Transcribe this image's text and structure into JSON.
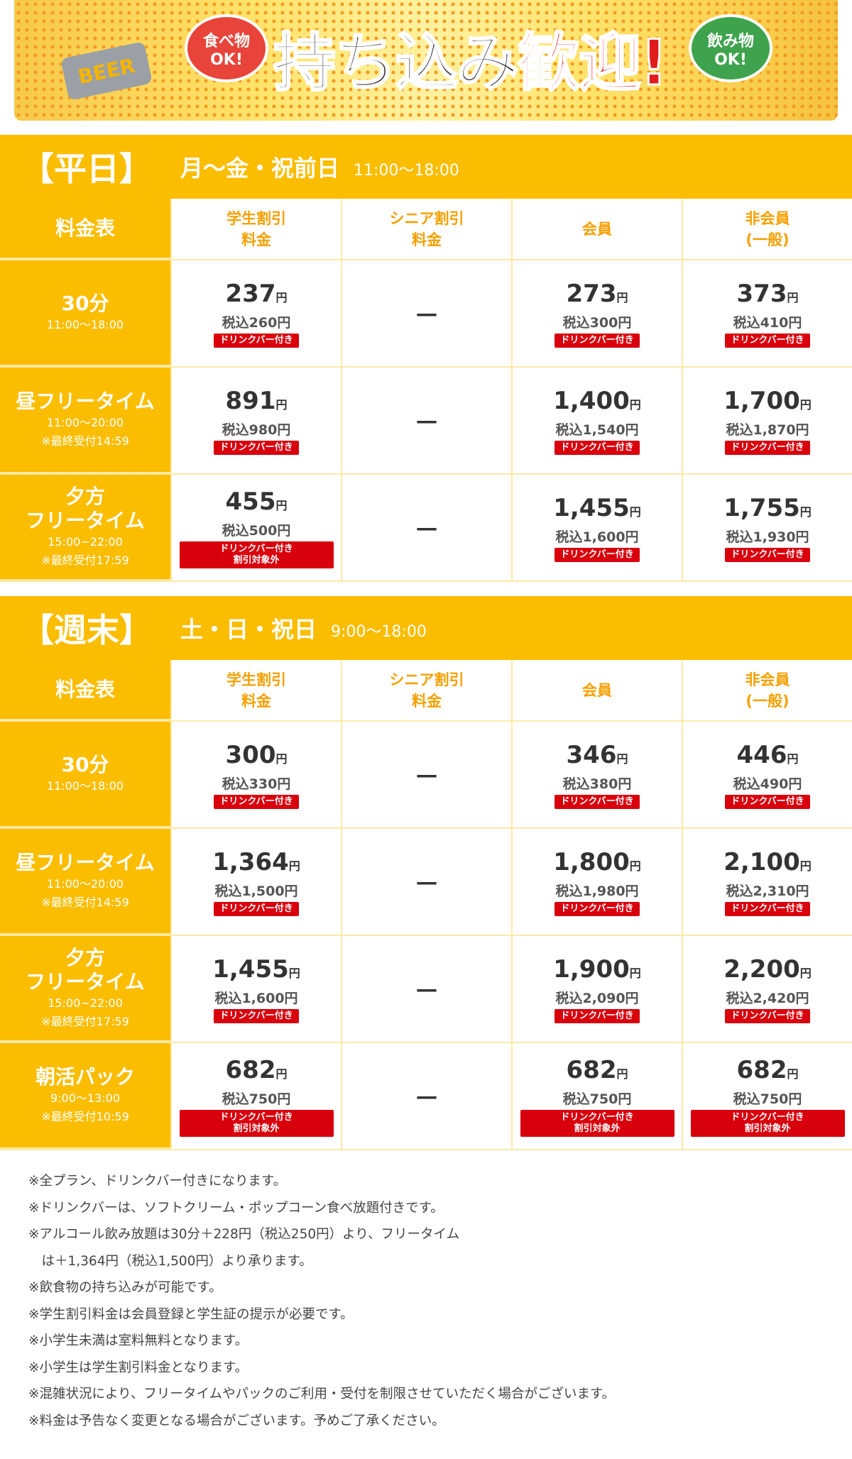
{
  "banner": {
    "beer": "BEER",
    "food": [
      "食べ物",
      "OK!"
    ],
    "title": "持ち込み",
    "title_red": "歓迎!",
    "drink": [
      "飲み物",
      "OK!"
    ]
  },
  "sections": [
    {
      "label": "【平日】",
      "days": "月～金・祝前日",
      "hours": "11:00～18:00",
      "header": [
        [
          "料金表"
        ],
        [
          "学生割引",
          "料金"
        ],
        [
          "シニア割引",
          "料金"
        ],
        [
          "会員"
        ],
        [
          "非会員",
          "(一般)"
        ]
      ],
      "rows": [
        {
          "name": [
            "30分"
          ],
          "times": [
            "11:00～18:00"
          ],
          "cells": [
            {
              "price": "237",
              "unit": "円",
              "tax": "税込260円",
              "badge": [
                "ドリンクバー付き"
              ]
            },
            {
              "dash": "－"
            },
            {
              "price": "273",
              "unit": "円",
              "tax": "税込300円",
              "badge": [
                "ドリンクバー付き"
              ]
            },
            {
              "price": "373",
              "unit": "円",
              "tax": "税込410円",
              "badge": [
                "ドリンクバー付き"
              ]
            }
          ]
        },
        {
          "name": [
            "昼フリータイム"
          ],
          "times": [
            "11:00～20:00",
            "※最終受付14:59"
          ],
          "cells": [
            {
              "price": "891",
              "unit": "円",
              "tax": "税込980円",
              "badge": [
                "ドリンクバー付き"
              ]
            },
            {
              "dash": "－"
            },
            {
              "price": "1,400",
              "unit": "円",
              "tax": "税込1,540円",
              "badge": [
                "ドリンクバー付き"
              ]
            },
            {
              "price": "1,700",
              "unit": "円",
              "tax": "税込1,870円",
              "badge": [
                "ドリンクバー付き"
              ]
            }
          ]
        },
        {
          "name": [
            "夕方",
            "フリータイム"
          ],
          "times": [
            "15:00~22:00",
            "※最終受付17:59"
          ],
          "cells": [
            {
              "price": "455",
              "unit": "円",
              "tax": "税込500円",
              "badge": [
                "ドリンクバー付き",
                "割引対象外"
              ]
            },
            {
              "dash": "－"
            },
            {
              "price": "1,455",
              "unit": "円",
              "tax": "税込1,600円",
              "badge": [
                "ドリンクバー付き"
              ]
            },
            {
              "price": "1,755",
              "unit": "円",
              "tax": "税込1,930円",
              "badge": [
                "ドリンクバー付き"
              ]
            }
          ]
        }
      ]
    },
    {
      "label": "【週末】",
      "days": "土・日・祝日",
      "hours": "9:00～18:00",
      "header": [
        [
          "料金表"
        ],
        [
          "学生割引",
          "料金"
        ],
        [
          "シニア割引",
          "料金"
        ],
        [
          "会員"
        ],
        [
          "非会員",
          "(一般)"
        ]
      ],
      "rows": [
        {
          "name": [
            "30分"
          ],
          "times": [
            "11:00～18:00"
          ],
          "cells": [
            {
              "price": "300",
              "unit": "円",
              "tax": "税込330円",
              "badge": [
                "ドリンクバー付き"
              ]
            },
            {
              "dash": "－"
            },
            {
              "price": "346",
              "unit": "円",
              "tax": "税込380円",
              "badge": [
                "ドリンクバー付き"
              ]
            },
            {
              "price": "446",
              "unit": "円",
              "tax": "税込490円",
              "badge": [
                "ドリンクバー付き"
              ]
            }
          ]
        },
        {
          "name": [
            "昼フリータイム"
          ],
          "times": [
            "11:00～20:00",
            "※最終受付14:59"
          ],
          "cells": [
            {
              "price": "1,364",
              "unit": "円",
              "tax": "税込1,500円",
              "badge": [
                "ドリンクバー付き"
              ]
            },
            {
              "dash": "－"
            },
            {
              "price": "1,800",
              "unit": "円",
              "tax": "税込1,980円",
              "badge": [
                "ドリンクバー付き"
              ]
            },
            {
              "price": "2,100",
              "unit": "円",
              "tax": "税込2,310円",
              "badge": [
                "ドリンクバー付き"
              ]
            }
          ]
        },
        {
          "name": [
            "夕方",
            "フリータイム"
          ],
          "times": [
            "15:00~22:00",
            "※最終受付17:59"
          ],
          "cells": [
            {
              "price": "1,455",
              "unit": "円",
              "tax": "税込1,600円",
              "badge": [
                "ドリンクバー付き"
              ]
            },
            {
              "dash": "－"
            },
            {
              "price": "1,900",
              "unit": "円",
              "tax": "税込2,090円",
              "badge": [
                "ドリンクバー付き"
              ]
            },
            {
              "price": "2,200",
              "unit": "円",
              "tax": "税込2,420円",
              "badge": [
                "ドリンクバー付き"
              ]
            }
          ]
        },
        {
          "name": [
            "朝活パック"
          ],
          "times": [
            "9:00～13:00",
            "※最終受付10:59"
          ],
          "cells": [
            {
              "price": "682",
              "unit": "円",
              "tax": "税込750円",
              "badge": [
                "ドリンクバー付き",
                "割引対象外"
              ]
            },
            {
              "dash": "－"
            },
            {
              "price": "682",
              "unit": "円",
              "tax": "税込750円",
              "badge": [
                "ドリンクバー付き",
                "割引対象外"
              ]
            },
            {
              "price": "682",
              "unit": "円",
              "tax": "税込750円",
              "badge": [
                "ドリンクバー付き",
                "割引対象外"
              ]
            }
          ]
        }
      ]
    }
  ],
  "notes": [
    [
      "※全プラン、ドリンクバー付きになります。"
    ],
    [
      "※ドリンクバーは、ソフトクリーム・ポップコーン食べ放題付きです。"
    ],
    [
      "※アルコール飲み放題は30分＋228円（税込250円）より、フリータイム",
      "　は＋1,364円（税込1,500円）より承ります。"
    ],
    [
      "※飲食物の持ち込みが可能です。"
    ],
    [
      "※学生割引料金は会員登録と学生証の提示が必要です。"
    ],
    [
      "※小学生未満は室料無料となります。"
    ],
    [
      "※小学生は学生割引料金となります。"
    ],
    [
      "※混雑状況により、フリータイムやパックのご利用・受付を制限させていただく場合がございます。"
    ],
    [
      "※料金は予告なく変更となる場合がございます。予めご了承ください。"
    ]
  ]
}
